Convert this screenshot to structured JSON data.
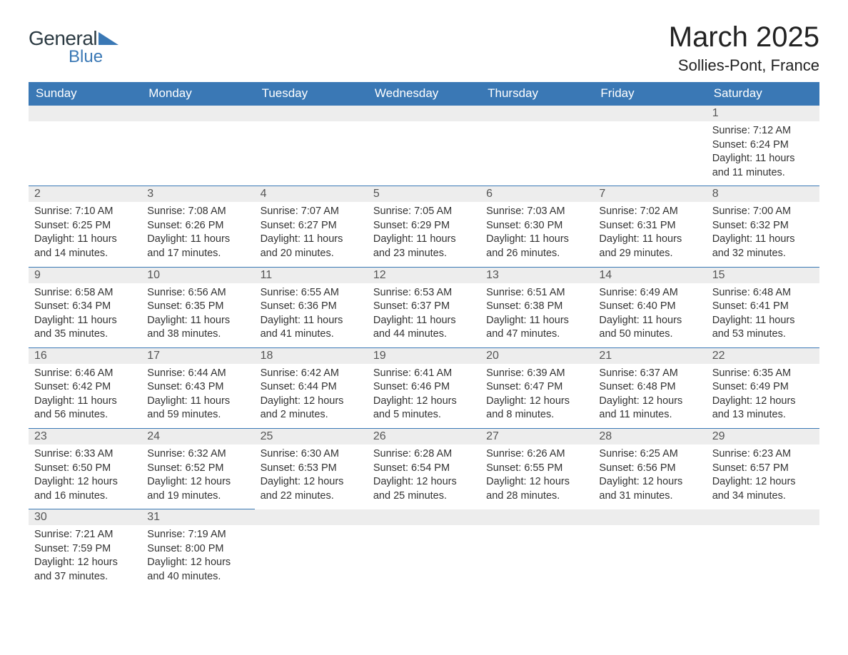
{
  "brand": {
    "word1": "General",
    "word2": "Blue",
    "tri_color": "#3a78b5"
  },
  "title": {
    "month": "March 2025",
    "location": "Sollies-Pont, France"
  },
  "colors": {
    "header_bg": "#3a78b5",
    "header_fg": "#ffffff",
    "daynum_bg": "#ededed",
    "text": "#333333",
    "rule": "#3a78b5"
  },
  "columns": [
    "Sunday",
    "Monday",
    "Tuesday",
    "Wednesday",
    "Thursday",
    "Friday",
    "Saturday"
  ],
  "labels": {
    "sunrise": "Sunrise:",
    "sunset": "Sunset:",
    "daylight": "Daylight:"
  },
  "weeks": [
    [
      null,
      null,
      null,
      null,
      null,
      null,
      {
        "n": "1",
        "sr": "7:12 AM",
        "ss": "6:24 PM",
        "dl": "11 hours and 11 minutes."
      }
    ],
    [
      {
        "n": "2",
        "sr": "7:10 AM",
        "ss": "6:25 PM",
        "dl": "11 hours and 14 minutes."
      },
      {
        "n": "3",
        "sr": "7:08 AM",
        "ss": "6:26 PM",
        "dl": "11 hours and 17 minutes."
      },
      {
        "n": "4",
        "sr": "7:07 AM",
        "ss": "6:27 PM",
        "dl": "11 hours and 20 minutes."
      },
      {
        "n": "5",
        "sr": "7:05 AM",
        "ss": "6:29 PM",
        "dl": "11 hours and 23 minutes."
      },
      {
        "n": "6",
        "sr": "7:03 AM",
        "ss": "6:30 PM",
        "dl": "11 hours and 26 minutes."
      },
      {
        "n": "7",
        "sr": "7:02 AM",
        "ss": "6:31 PM",
        "dl": "11 hours and 29 minutes."
      },
      {
        "n": "8",
        "sr": "7:00 AM",
        "ss": "6:32 PM",
        "dl": "11 hours and 32 minutes."
      }
    ],
    [
      {
        "n": "9",
        "sr": "6:58 AM",
        "ss": "6:34 PM",
        "dl": "11 hours and 35 minutes."
      },
      {
        "n": "10",
        "sr": "6:56 AM",
        "ss": "6:35 PM",
        "dl": "11 hours and 38 minutes."
      },
      {
        "n": "11",
        "sr": "6:55 AM",
        "ss": "6:36 PM",
        "dl": "11 hours and 41 minutes."
      },
      {
        "n": "12",
        "sr": "6:53 AM",
        "ss": "6:37 PM",
        "dl": "11 hours and 44 minutes."
      },
      {
        "n": "13",
        "sr": "6:51 AM",
        "ss": "6:38 PM",
        "dl": "11 hours and 47 minutes."
      },
      {
        "n": "14",
        "sr": "6:49 AM",
        "ss": "6:40 PM",
        "dl": "11 hours and 50 minutes."
      },
      {
        "n": "15",
        "sr": "6:48 AM",
        "ss": "6:41 PM",
        "dl": "11 hours and 53 minutes."
      }
    ],
    [
      {
        "n": "16",
        "sr": "6:46 AM",
        "ss": "6:42 PM",
        "dl": "11 hours and 56 minutes."
      },
      {
        "n": "17",
        "sr": "6:44 AM",
        "ss": "6:43 PM",
        "dl": "11 hours and 59 minutes."
      },
      {
        "n": "18",
        "sr": "6:42 AM",
        "ss": "6:44 PM",
        "dl": "12 hours and 2 minutes."
      },
      {
        "n": "19",
        "sr": "6:41 AM",
        "ss": "6:46 PM",
        "dl": "12 hours and 5 minutes."
      },
      {
        "n": "20",
        "sr": "6:39 AM",
        "ss": "6:47 PM",
        "dl": "12 hours and 8 minutes."
      },
      {
        "n": "21",
        "sr": "6:37 AM",
        "ss": "6:48 PM",
        "dl": "12 hours and 11 minutes."
      },
      {
        "n": "22",
        "sr": "6:35 AM",
        "ss": "6:49 PM",
        "dl": "12 hours and 13 minutes."
      }
    ],
    [
      {
        "n": "23",
        "sr": "6:33 AM",
        "ss": "6:50 PM",
        "dl": "12 hours and 16 minutes."
      },
      {
        "n": "24",
        "sr": "6:32 AM",
        "ss": "6:52 PM",
        "dl": "12 hours and 19 minutes."
      },
      {
        "n": "25",
        "sr": "6:30 AM",
        "ss": "6:53 PM",
        "dl": "12 hours and 22 minutes."
      },
      {
        "n": "26",
        "sr": "6:28 AM",
        "ss": "6:54 PM",
        "dl": "12 hours and 25 minutes."
      },
      {
        "n": "27",
        "sr": "6:26 AM",
        "ss": "6:55 PM",
        "dl": "12 hours and 28 minutes."
      },
      {
        "n": "28",
        "sr": "6:25 AM",
        "ss": "6:56 PM",
        "dl": "12 hours and 31 minutes."
      },
      {
        "n": "29",
        "sr": "6:23 AM",
        "ss": "6:57 PM",
        "dl": "12 hours and 34 minutes."
      }
    ],
    [
      {
        "n": "30",
        "sr": "7:21 AM",
        "ss": "7:59 PM",
        "dl": "12 hours and 37 minutes."
      },
      {
        "n": "31",
        "sr": "7:19 AM",
        "ss": "8:00 PM",
        "dl": "12 hours and 40 minutes."
      },
      null,
      null,
      null,
      null,
      null
    ]
  ]
}
